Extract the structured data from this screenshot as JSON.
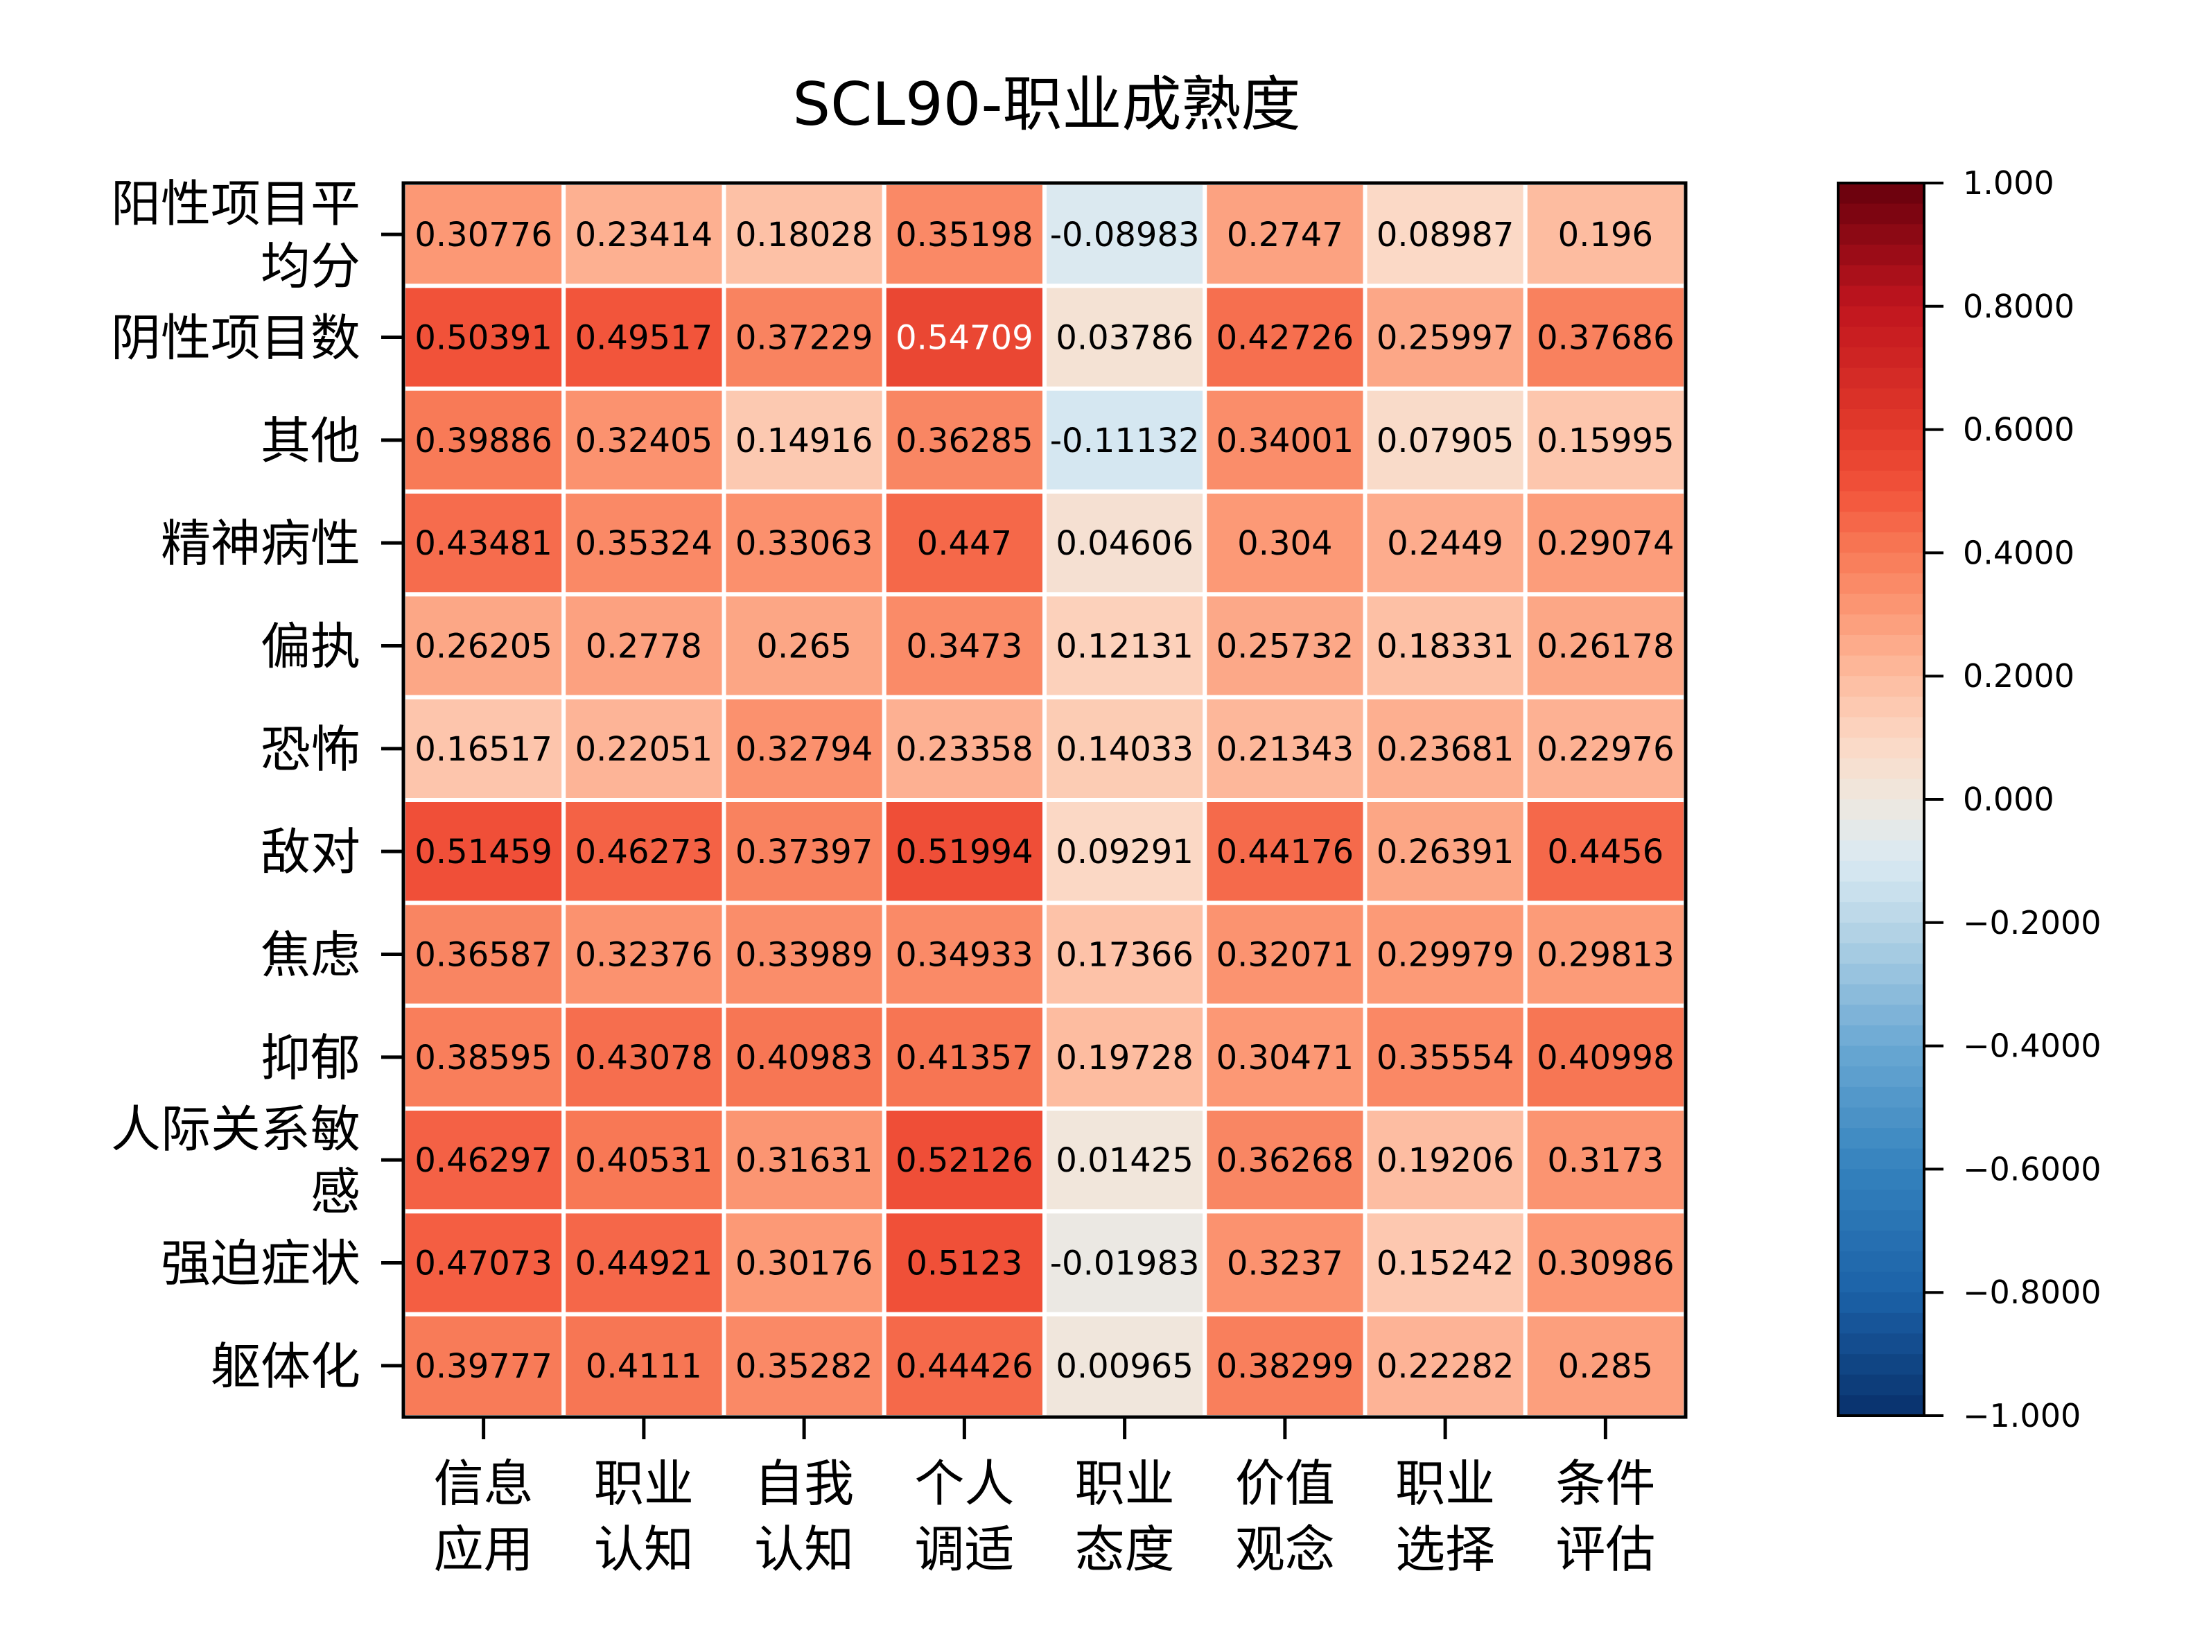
{
  "chart_data": {
    "type": "heatmap",
    "title": "SCL90-职业成熟度",
    "rows": [
      "阳性项目平均分",
      "阴性项目数",
      "其他",
      "精神病性",
      "偏执",
      "恐怖",
      "敌对",
      "焦虑",
      "抑郁",
      "人际关系敏感",
      "强迫症状",
      "躯体化"
    ],
    "row_label_lines": [
      [
        "阳性项目平",
        "均分"
      ],
      [
        "阴性项目数"
      ],
      [
        "其他"
      ],
      [
        "精神病性"
      ],
      [
        "偏执"
      ],
      [
        "恐怖"
      ],
      [
        "敌对"
      ],
      [
        "焦虑"
      ],
      [
        "抑郁"
      ],
      [
        "人际关系敏",
        "感"
      ],
      [
        "强迫症状"
      ],
      [
        "躯体化"
      ]
    ],
    "columns": [
      "信息应用",
      "职业认知",
      "自我认知",
      "个人调适",
      "职业态度",
      "价值观念",
      "职业选择",
      "条件评估"
    ],
    "column_label_lines": [
      [
        "信息",
        "应用"
      ],
      [
        "职业",
        "认知"
      ],
      [
        "自我",
        "认知"
      ],
      [
        "个人",
        "调适"
      ],
      [
        "职业",
        "态度"
      ],
      [
        "价值",
        "观念"
      ],
      [
        "职业",
        "选择"
      ],
      [
        "条件",
        "评估"
      ]
    ],
    "values": [
      [
        0.30776,
        0.23414,
        0.18028,
        0.35198,
        -0.08983,
        0.2747,
        0.08987,
        0.196
      ],
      [
        0.50391,
        0.49517,
        0.37229,
        0.54709,
        0.03786,
        0.42726,
        0.25997,
        0.37686
      ],
      [
        0.39886,
        0.32405,
        0.14916,
        0.36285,
        -0.11132,
        0.34001,
        0.07905,
        0.15995
      ],
      [
        0.43481,
        0.35324,
        0.33063,
        0.447,
        0.04606,
        0.304,
        0.2449,
        0.29074
      ],
      [
        0.26205,
        0.2778,
        0.265,
        0.3473,
        0.12131,
        0.25732,
        0.18331,
        0.26178
      ],
      [
        0.16517,
        0.22051,
        0.32794,
        0.23358,
        0.14033,
        0.21343,
        0.23681,
        0.22976
      ],
      [
        0.51459,
        0.46273,
        0.37397,
        0.51994,
        0.09291,
        0.44176,
        0.26391,
        0.4456
      ],
      [
        0.36587,
        0.32376,
        0.33989,
        0.34933,
        0.17366,
        0.32071,
        0.29979,
        0.29813
      ],
      [
        0.38595,
        0.43078,
        0.40983,
        0.41357,
        0.19728,
        0.30471,
        0.35554,
        0.40998
      ],
      [
        0.46297,
        0.40531,
        0.31631,
        0.52126,
        0.01425,
        0.36268,
        0.19206,
        0.3173
      ],
      [
        0.47073,
        0.44921,
        0.30176,
        0.5123,
        -0.01983,
        0.3237,
        0.15242,
        0.30986
      ],
      [
        0.39777,
        0.4111,
        0.35282,
        0.44426,
        0.00965,
        0.38299,
        0.22282,
        0.285
      ]
    ],
    "cell_labels": [
      [
        "0.30776",
        "0.23414",
        "0.18028",
        "0.35198",
        "-0.08983",
        "0.2747",
        "0.08987",
        "0.196"
      ],
      [
        "0.50391",
        "0.49517",
        "0.37229",
        "0.54709",
        "0.03786",
        "0.42726",
        "0.25997",
        "0.37686"
      ],
      [
        "0.39886",
        "0.32405",
        "0.14916",
        "0.36285",
        "-0.11132",
        "0.34001",
        "0.07905",
        "0.15995"
      ],
      [
        "0.43481",
        "0.35324",
        "0.33063",
        "0.447",
        "0.04606",
        "0.304",
        "0.2449",
        "0.29074"
      ],
      [
        "0.26205",
        "0.2778",
        "0.265",
        "0.3473",
        "0.12131",
        "0.25732",
        "0.18331",
        "0.26178"
      ],
      [
        "0.16517",
        "0.22051",
        "0.32794",
        "0.23358",
        "0.14033",
        "0.21343",
        "0.23681",
        "0.22976"
      ],
      [
        "0.51459",
        "0.46273",
        "0.37397",
        "0.51994",
        "0.09291",
        "0.44176",
        "0.26391",
        "0.4456"
      ],
      [
        "0.36587",
        "0.32376",
        "0.33989",
        "0.34933",
        "0.17366",
        "0.32071",
        "0.29979",
        "0.29813"
      ],
      [
        "0.38595",
        "0.43078",
        "0.40983",
        "0.41357",
        "0.19728",
        "0.30471",
        "0.35554",
        "0.40998"
      ],
      [
        "0.46297",
        "0.40531",
        "0.31631",
        "0.52126",
        "0.01425",
        "0.36268",
        "0.19206",
        "0.3173"
      ],
      [
        "0.47073",
        "0.44921",
        "0.30176",
        "0.5123",
        "-0.01983",
        "0.3237",
        "0.15242",
        "0.30986"
      ],
      [
        "0.39777",
        "0.4111",
        "0.35282",
        "0.44426",
        "0.00965",
        "0.38299",
        "0.22282",
        "0.285"
      ]
    ],
    "colorbar": {
      "range": [
        -1.0,
        1.0
      ],
      "ticks": [
        1.0,
        0.8,
        0.6,
        0.4,
        0.2,
        0.0,
        -0.2,
        -0.4,
        -0.6,
        -0.8,
        -1.0
      ],
      "tick_labels": [
        "1.000",
        "0.8000",
        "0.6000",
        "0.4000",
        "0.2000",
        "0.000",
        "−0.2000",
        "−0.4000",
        "−0.6000",
        "−0.8000",
        "−1.000"
      ],
      "colormap": "RdBu_r",
      "stops": [
        {
          "v": -1.0,
          "c": "#08306b"
        },
        {
          "v": -0.8,
          "c": "#1c62a8"
        },
        {
          "v": -0.6,
          "c": "#3482bd"
        },
        {
          "v": -0.4,
          "c": "#6aa8d3"
        },
        {
          "v": -0.2,
          "c": "#b9d6e7"
        },
        {
          "v": -0.1,
          "c": "#d9e9f2"
        },
        {
          "v": 0.0,
          "c": "#efe8df"
        },
        {
          "v": 0.1,
          "c": "#fcd7c3"
        },
        {
          "v": 0.2,
          "c": "#fdbb9f"
        },
        {
          "v": 0.3,
          "c": "#fc9a77"
        },
        {
          "v": 0.4,
          "c": "#f87a57"
        },
        {
          "v": 0.5,
          "c": "#f2533a"
        },
        {
          "v": 0.6,
          "c": "#e23a2b"
        },
        {
          "v": 0.8,
          "c": "#c0151e"
        },
        {
          "v": 1.0,
          "c": "#67000d"
        }
      ]
    },
    "grid": true,
    "legend": "colorbar-right"
  }
}
